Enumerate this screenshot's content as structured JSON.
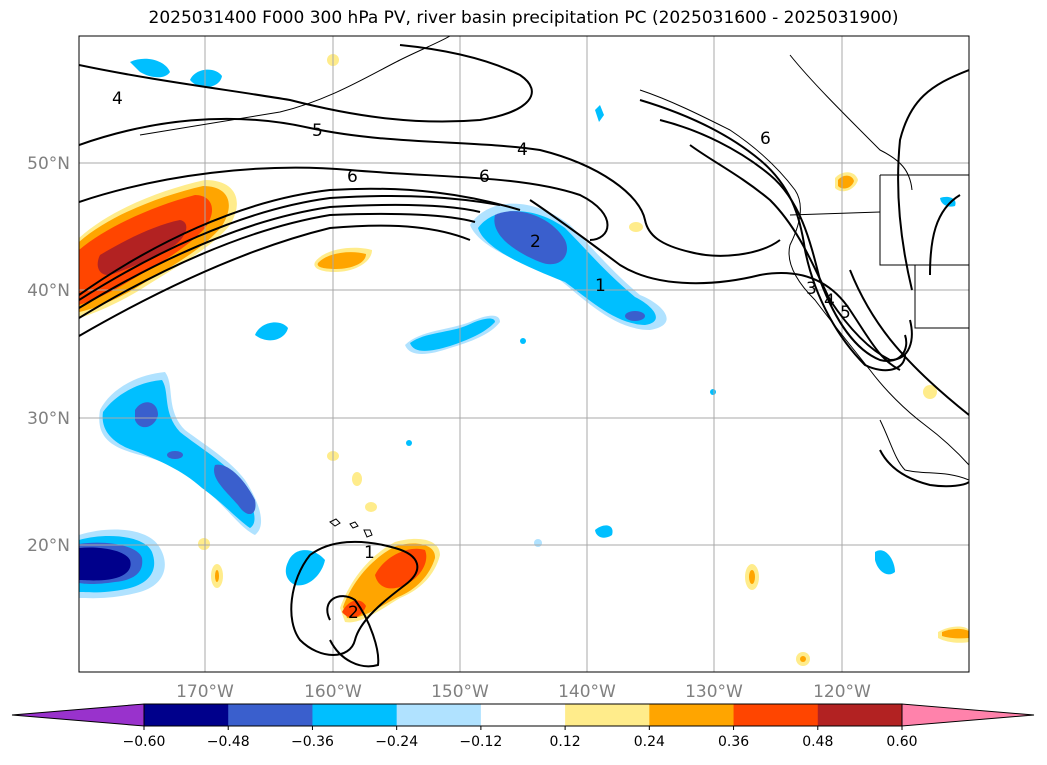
{
  "title": "2025031400 F000 300 hPa PV, river basin precipitation PC (2025031600 - 2025031900)",
  "map": {
    "lon_labels": [
      "170°W",
      "160°W",
      "150°W",
      "140°W",
      "130°W",
      "120°W"
    ],
    "lat_labels": [
      "50°N",
      "40°N",
      "30°N",
      "20°N"
    ],
    "contour_labels": [
      "4",
      "5",
      "4",
      "6",
      "6",
      "2",
      "1",
      "6",
      "3",
      "4",
      "5",
      "1",
      "2"
    ]
  },
  "colorbar": {
    "ticks": [
      "−0.60",
      "−0.48",
      "−0.36",
      "−0.24",
      "−0.12",
      "0.12",
      "0.24",
      "0.36",
      "0.48",
      "0.60"
    ],
    "colors": [
      "#9932cc",
      "#00008b",
      "#3a5fcd",
      "#00bfff",
      "#b0e2ff",
      "#ffffff",
      "#ffec8b",
      "#ffa500",
      "#ff4500",
      "#b22222",
      "#ff82ab"
    ]
  }
}
